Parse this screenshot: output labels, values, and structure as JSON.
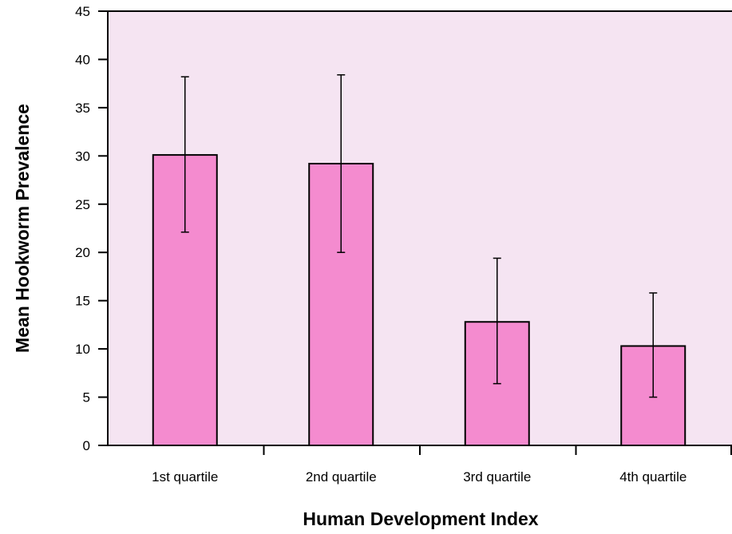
{
  "colors": {
    "plot_background": "#f5e4f2",
    "bar_fill": "#f48bcf",
    "bar_stroke": "#000000",
    "axis": "#000000"
  },
  "chart_data": {
    "type": "bar",
    "xlabel": "Human Development Index",
    "ylabel": "Mean Hookworm Prevalence",
    "categories": [
      "1st quartile",
      "2nd quartile",
      "3rd quartile",
      "4th quartile"
    ],
    "values": [
      30.1,
      29.2,
      12.8,
      10.3
    ],
    "error_low": [
      22.1,
      20.0,
      6.4,
      5.0
    ],
    "error_high": [
      38.2,
      38.4,
      19.4,
      15.8
    ],
    "ylim": [
      0,
      45
    ],
    "yticks": [
      "0",
      "5",
      "10",
      "15",
      "20",
      "25",
      "30",
      "35",
      "40",
      "45"
    ],
    "grid": false,
    "legend": "none"
  }
}
